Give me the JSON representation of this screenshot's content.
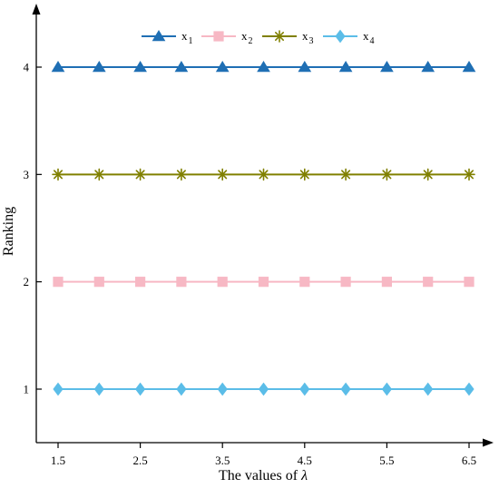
{
  "chart_data": {
    "type": "line",
    "xlabel": "The values of",
    "xlabel_symbol": "λ",
    "ylabel": "Ranking",
    "x": [
      1.5,
      2,
      2.5,
      3,
      3.5,
      4,
      4.5,
      5,
      5.5,
      6,
      6.5
    ],
    "x_ticks": [
      "1.5",
      "2.5",
      "3.5",
      "4.5",
      "5.5",
      "6.5"
    ],
    "y_ticks": [
      "1",
      "2",
      "3",
      "4"
    ],
    "xlim": [
      1.5,
      6.5
    ],
    "ylim": [
      1,
      4
    ],
    "grid": false,
    "legend_position": "top-center",
    "series": [
      {
        "name": "x1",
        "label_base": "x",
        "label_sub": "1",
        "color": "#1f6fb4",
        "marker": "triangle",
        "values": [
          4,
          4,
          4,
          4,
          4,
          4,
          4,
          4,
          4,
          4,
          4
        ]
      },
      {
        "name": "x2",
        "label_base": "x",
        "label_sub": "2",
        "color": "#f7b8c4",
        "marker": "square",
        "values": [
          2,
          2,
          2,
          2,
          2,
          2,
          2,
          2,
          2,
          2,
          2
        ]
      },
      {
        "name": "x3",
        "label_base": "x",
        "label_sub": "3",
        "color": "#808000",
        "marker": "asterisk",
        "values": [
          3,
          3,
          3,
          3,
          3,
          3,
          3,
          3,
          3,
          3,
          3
        ]
      },
      {
        "name": "x4",
        "label_base": "x",
        "label_sub": "4",
        "color": "#5bbde8",
        "marker": "diamond",
        "values": [
          1,
          1,
          1,
          1,
          1,
          1,
          1,
          1,
          1,
          1,
          1
        ]
      }
    ]
  }
}
